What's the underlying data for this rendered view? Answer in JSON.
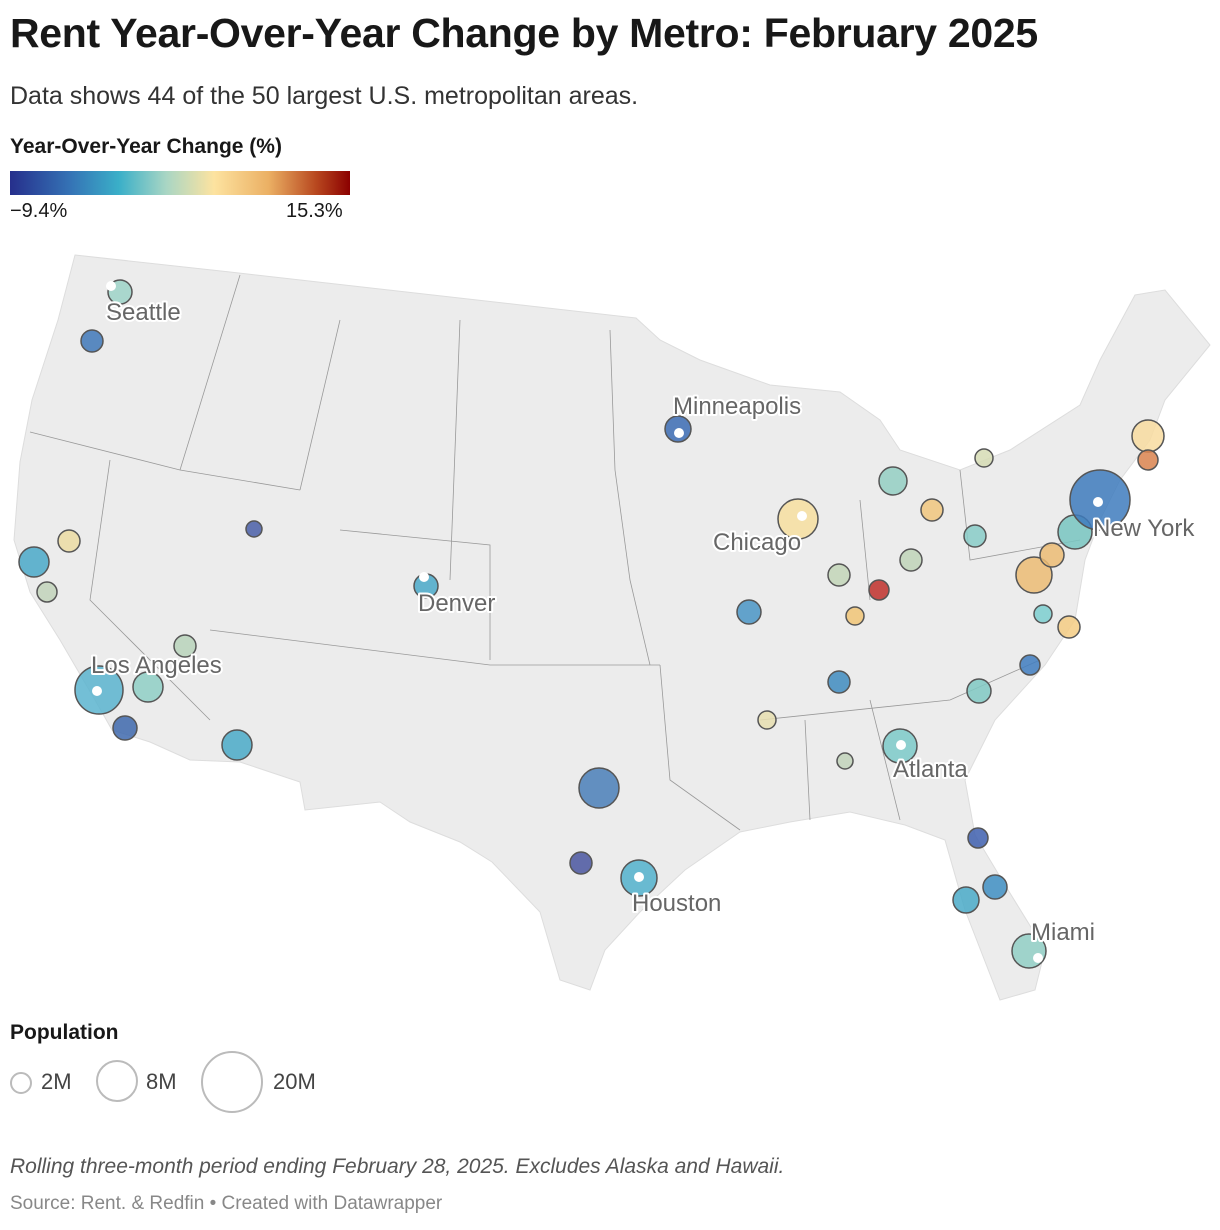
{
  "title": "Rent Year-Over-Year Change by Metro: February 2025",
  "subtitle": "Data shows 44 of the 50 largest U.S. metropolitan areas.",
  "color_legend": {
    "title": "Year-Over-Year Change (%)",
    "min": "−9.4%",
    "max": "15.3%",
    "colors": [
      "#262f8c",
      "#3574b6",
      "#3aafc8",
      "#a9d6c4",
      "#fde3a0",
      "#ebb064",
      "#b8481f",
      "#8b0000"
    ]
  },
  "labels": {
    "seattle": "Seattle",
    "minneapolis": "Minneapolis",
    "chicago": "Chicago",
    "denver": "Denver",
    "los_angeles": "Los Angeles",
    "new_york": "New York",
    "atlanta": "Atlanta",
    "houston": "Houston",
    "miami": "Miami"
  },
  "size_legend": {
    "title": "Population",
    "items": [
      "2M",
      "8M",
      "20M"
    ]
  },
  "notes": "Rolling three-month period ending February 28, 2025. Excludes Alaska and Hawaii.",
  "source": "Source: Rent. & Redfin • Created with Datawrapper"
}
